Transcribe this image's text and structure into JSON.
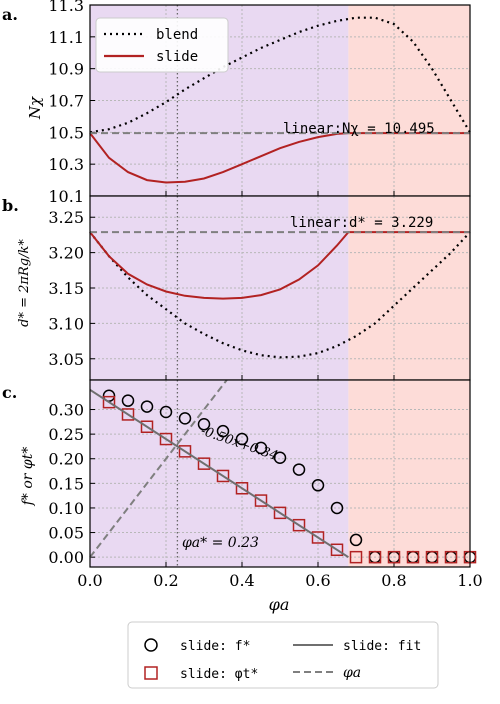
{
  "colors": {
    "blend": "#000000",
    "slide": "#b22222",
    "linear": "#7f7f7f",
    "fit": "#6f6f6f",
    "region_left": "#e9d9f2",
    "region_right": "#fddcd8",
    "grid": "#b8b8b8"
  },
  "chart_data": [
    {
      "panel": "a.",
      "type": "line",
      "ylabel": "Nχ",
      "xlim": [
        0.0,
        1.0
      ],
      "ylim": [
        10.1,
        11.3
      ],
      "yticks": [
        "10.1",
        "10.3",
        "10.5",
        "10.7",
        "10.9",
        "11.1",
        "11.3"
      ],
      "ytick_values": [
        10.1,
        10.3,
        10.5,
        10.7,
        10.9,
        11.1,
        11.3
      ],
      "grid": true,
      "legend_position": "top-left",
      "annotation": "linear:Nχ = 10.495",
      "series": [
        {
          "name": "blend",
          "style": "dotted",
          "color": "#000000",
          "x": [
            0.0,
            0.05,
            0.1,
            0.15,
            0.2,
            0.25,
            0.3,
            0.35,
            0.4,
            0.45,
            0.5,
            0.55,
            0.6,
            0.65,
            0.7,
            0.75,
            0.8,
            0.85,
            0.9,
            0.95,
            1.0
          ],
          "y": [
            10.5,
            10.52,
            10.56,
            10.62,
            10.69,
            10.77,
            10.84,
            10.91,
            10.97,
            11.03,
            11.08,
            11.13,
            11.17,
            11.2,
            11.22,
            11.22,
            11.18,
            11.07,
            10.9,
            10.7,
            10.5
          ]
        },
        {
          "name": "slide",
          "style": "solid",
          "color": "#b22222",
          "x": [
            0.0,
            0.05,
            0.1,
            0.15,
            0.2,
            0.25,
            0.3,
            0.35,
            0.4,
            0.45,
            0.5,
            0.55,
            0.6,
            0.65,
            0.68,
            0.7,
            0.8,
            0.9,
            1.0
          ],
          "y": [
            10.495,
            10.34,
            10.25,
            10.2,
            10.185,
            10.19,
            10.21,
            10.25,
            10.3,
            10.35,
            10.4,
            10.44,
            10.47,
            10.49,
            10.495,
            10.495,
            10.495,
            10.495,
            10.495
          ]
        },
        {
          "name": "linear",
          "style": "dashed",
          "color": "#7f7f7f",
          "x": [
            0.0,
            1.0
          ],
          "y": [
            10.495,
            10.495
          ]
        }
      ]
    },
    {
      "panel": "b.",
      "type": "line",
      "ylabel": "d* = 2πRg/k*",
      "xlim": [
        0.0,
        1.0
      ],
      "ylim": [
        3.02,
        3.28
      ],
      "yticks": [
        "3.05",
        "3.10",
        "3.15",
        "3.20",
        "3.25"
      ],
      "ytick_values": [
        3.05,
        3.1,
        3.15,
        3.2,
        3.25
      ],
      "grid": true,
      "annotation": "linear:d* = 3.229",
      "series": [
        {
          "name": "blend",
          "style": "dotted",
          "color": "#000000",
          "x": [
            0.0,
            0.05,
            0.1,
            0.15,
            0.2,
            0.25,
            0.3,
            0.35,
            0.4,
            0.45,
            0.5,
            0.55,
            0.6,
            0.65,
            0.7,
            0.75,
            0.8,
            0.85,
            0.9,
            0.95,
            1.0
          ],
          "y": [
            3.229,
            3.195,
            3.165,
            3.14,
            3.12,
            3.1,
            3.085,
            3.072,
            3.062,
            3.055,
            3.052,
            3.053,
            3.058,
            3.068,
            3.082,
            3.1,
            3.125,
            3.15,
            3.175,
            3.2,
            3.229
          ]
        },
        {
          "name": "slide",
          "style": "solid",
          "color": "#b22222",
          "x": [
            0.0,
            0.05,
            0.1,
            0.15,
            0.2,
            0.25,
            0.3,
            0.35,
            0.4,
            0.45,
            0.5,
            0.55,
            0.6,
            0.65,
            0.68,
            0.7,
            0.8,
            0.9,
            1.0
          ],
          "y": [
            3.229,
            3.195,
            3.17,
            3.155,
            3.145,
            3.139,
            3.136,
            3.135,
            3.136,
            3.14,
            3.148,
            3.162,
            3.182,
            3.21,
            3.229,
            3.229,
            3.229,
            3.229,
            3.229
          ]
        },
        {
          "name": "linear",
          "style": "dashed",
          "color": "#7f7f7f",
          "x": [
            0.0,
            1.0
          ],
          "y": [
            3.229,
            3.229
          ]
        }
      ]
    },
    {
      "panel": "c.",
      "type": "scatter",
      "xlabel": "φa",
      "ylabel": "f* or φt*",
      "xlim": [
        0.0,
        1.0
      ],
      "ylim": [
        -0.02,
        0.36
      ],
      "xticks": [
        "0.0",
        "0.2",
        "0.4",
        "0.6",
        "0.8",
        "1.0"
      ],
      "xtick_values": [
        0.0,
        0.2,
        0.4,
        0.6,
        0.8,
        1.0
      ],
      "yticks": [
        "0.00",
        "0.05",
        "0.10",
        "0.15",
        "0.20",
        "0.25",
        "0.30"
      ],
      "ytick_values": [
        0.0,
        0.05,
        0.1,
        0.15,
        0.2,
        0.25,
        0.3
      ],
      "grid": true,
      "annotations": [
        "-0.50x+0.34",
        "φa* = 0.23"
      ],
      "series": [
        {
          "name": "slide: f*",
          "marker": "circle",
          "color": "#000000",
          "x": [
            0.05,
            0.1,
            0.15,
            0.2,
            0.25,
            0.3,
            0.35,
            0.4,
            0.45,
            0.5,
            0.55,
            0.6,
            0.65,
            0.7,
            0.75,
            0.8,
            0.85,
            0.9,
            0.95,
            1.0
          ],
          "y": [
            0.328,
            0.318,
            0.306,
            0.295,
            0.282,
            0.27,
            0.256,
            0.24,
            0.222,
            0.202,
            0.178,
            0.146,
            0.1,
            0.035,
            0.0,
            0.0,
            0.0,
            0.0,
            0.0,
            0.0
          ]
        },
        {
          "name": "slide: φt*",
          "marker": "square",
          "color": "#b22222",
          "x": [
            0.05,
            0.1,
            0.15,
            0.2,
            0.25,
            0.3,
            0.35,
            0.4,
            0.45,
            0.5,
            0.55,
            0.6,
            0.65,
            0.7,
            0.75,
            0.8,
            0.85,
            0.9,
            0.95,
            1.0
          ],
          "y": [
            0.315,
            0.29,
            0.265,
            0.24,
            0.215,
            0.19,
            0.165,
            0.14,
            0.115,
            0.09,
            0.065,
            0.04,
            0.015,
            0.0,
            0.0,
            0.0,
            0.0,
            0.0,
            0.0,
            0.0
          ]
        },
        {
          "name": "slide: fit",
          "style": "solid",
          "color": "#6f6f6f",
          "x": [
            0.0,
            0.68
          ],
          "y": [
            0.34,
            0.0
          ]
        },
        {
          "name": "φa",
          "style": "dashed",
          "color": "#7f7f7f",
          "x": [
            0.0,
            0.36
          ],
          "y": [
            0.0,
            0.36
          ]
        }
      ]
    }
  ],
  "legend_bottom": [
    {
      "label": "slide: f*",
      "marker": "circle"
    },
    {
      "label": "slide: φt*",
      "marker": "square"
    },
    {
      "label": "slide: fit",
      "marker": "solid"
    },
    {
      "label": "φa",
      "marker": "dashed"
    }
  ],
  "regions": {
    "boundary_x": 0.68,
    "critical_x": 0.23
  }
}
